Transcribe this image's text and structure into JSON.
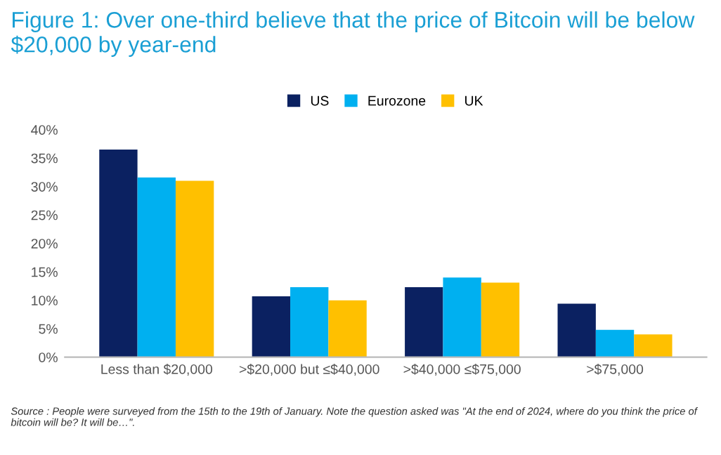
{
  "chart_data": {
    "type": "bar",
    "title": "Figure 1: Over one-third believe that the price of Bitcoin will be below $20,000 by year-end",
    "categories": [
      "Less than $20,000",
      ">$20,000 but ≤$40,000",
      ">$40,000 ≤$75,000",
      ">$75,000"
    ],
    "series": [
      {
        "name": "US",
        "color": "#0b2161",
        "values": [
          36.5,
          10.7,
          12.3,
          9.4
        ]
      },
      {
        "name": "Eurozone",
        "color": "#00b0f0",
        "values": [
          31.6,
          12.3,
          14.0,
          4.8
        ]
      },
      {
        "name": "UK",
        "color": "#ffc000",
        "values": [
          31.0,
          10.0,
          13.1,
          4.0
        ]
      }
    ],
    "ylim": [
      0,
      40
    ],
    "yticks": [
      {
        "value": 0,
        "label": "0%"
      },
      {
        "value": 5,
        "label": "5%"
      },
      {
        "value": 10,
        "label": "10%"
      },
      {
        "value": 15,
        "label": "15%"
      },
      {
        "value": 20,
        "label": "20%"
      },
      {
        "value": 25,
        "label": "25%"
      },
      {
        "value": 30,
        "label": "30%"
      },
      {
        "value": 35,
        "label": "35%"
      },
      {
        "value": 40,
        "label": "40%"
      }
    ],
    "grid": false,
    "legend": "top",
    "annotations": [
      "Source : People were surveyed from the 15th to the 19th of January. Note the question asked was \"At the end of 2024, where do you think the price of bitcoin will be? It will be…\"."
    ]
  }
}
